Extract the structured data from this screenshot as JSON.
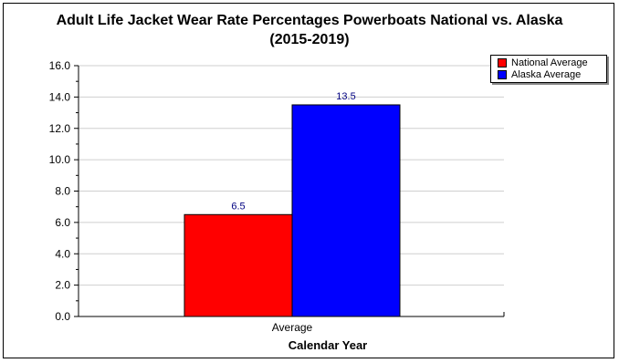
{
  "chart_data": {
    "type": "bar",
    "title": "Adult Life Jacket Wear Rate Percentages Powerboats National vs. Alaska",
    "subtitle": "(2015-2019)",
    "categories": [
      "Average"
    ],
    "series": [
      {
        "name": "National Average",
        "values": [
          6.5
        ],
        "color": "#ff0000"
      },
      {
        "name": "Alaska Average",
        "values": [
          13.5
        ],
        "color": "#0000ff"
      }
    ],
    "xlabel": "Calendar Year",
    "ylabel": "",
    "ylim": [
      0,
      16
    ],
    "yticks": [
      "0.0",
      "2.0",
      "4.0",
      "6.0",
      "8.0",
      "10.0",
      "12.0",
      "14.0",
      "16.0"
    ],
    "data_labels": [
      "6.5",
      "13.5"
    ],
    "data_label_color": "#000080",
    "grid": true,
    "legend_position": "top-right"
  }
}
